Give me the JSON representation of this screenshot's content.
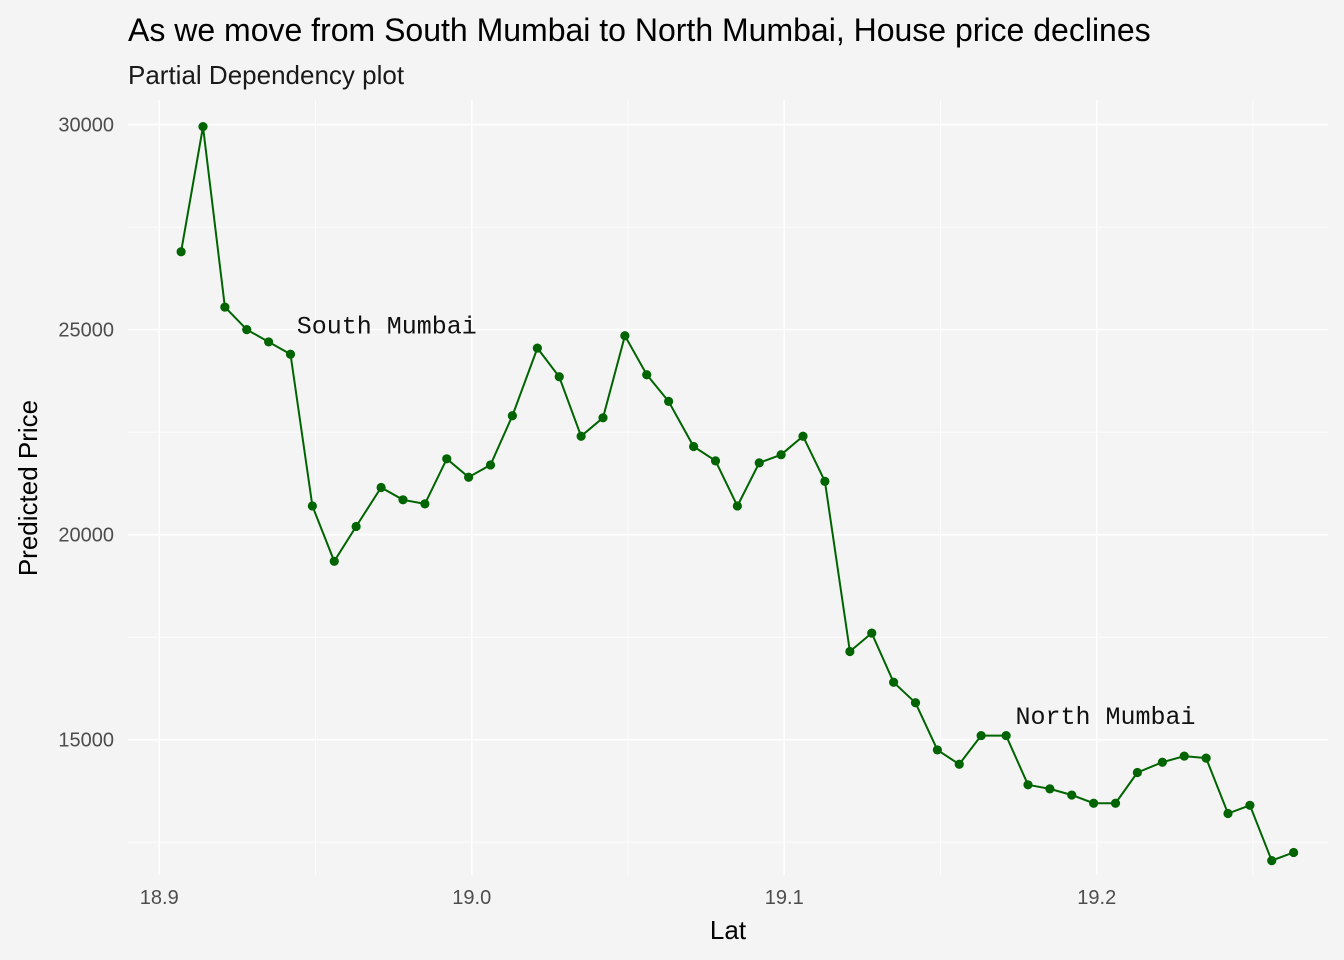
{
  "chart_data": {
    "type": "line",
    "title": "As we move from South Mumbai to North Mumbai, House price declines",
    "subtitle": "Partial Dependency plot",
    "xlabel": "Lat",
    "ylabel": "Predicted Price",
    "xlim": [
      18.89,
      19.274
    ],
    "ylim": [
      11700,
      30600
    ],
    "x_ticks": [
      18.9,
      19.0,
      19.1,
      19.2
    ],
    "x_tick_labels": [
      "18.9",
      "19.0",
      "19.1",
      "19.2"
    ],
    "y_ticks": [
      15000,
      20000,
      25000,
      30000
    ],
    "y_tick_labels": [
      "15000",
      "20000",
      "25000",
      "30000"
    ],
    "grid": true,
    "legend": "none",
    "colors": {
      "background": "#f4f4f4",
      "grid": "#ffffff",
      "series": "#006400",
      "annotation": "#111111"
    },
    "annotations": [
      {
        "text": "South Mumbai",
        "x": 18.944,
        "y": 24900
      },
      {
        "text": "North Mumbai",
        "x": 19.174,
        "y": 15380
      }
    ],
    "series": [
      {
        "x": [
          18.907,
          18.914,
          18.921,
          18.928,
          18.935,
          18.942,
          18.949,
          18.956,
          18.963,
          18.971,
          18.978,
          18.985,
          18.992,
          18.999,
          19.006,
          19.013,
          19.021,
          19.028,
          19.035,
          19.042,
          19.049,
          19.056,
          19.063,
          19.071,
          19.078,
          19.085,
          19.092,
          19.099,
          19.106,
          19.113,
          19.121,
          19.128,
          19.135,
          19.142,
          19.149,
          19.156,
          19.163,
          19.171,
          19.178,
          19.185,
          19.192,
          19.199,
          19.206,
          19.213,
          19.221,
          19.228,
          19.235,
          19.242,
          19.249,
          19.256,
          19.263
        ],
        "values": [
          26900,
          29950,
          25550,
          25000,
          24700,
          24400,
          20700,
          19350,
          20200,
          21150,
          20850,
          20750,
          21850,
          21400,
          21700,
          22900,
          24550,
          23850,
          22400,
          22850,
          24850,
          23900,
          23250,
          22150,
          21800,
          20700,
          21750,
          21950,
          22400,
          21300,
          17150,
          17600,
          16400,
          15900,
          14750,
          14400,
          15100,
          15100,
          13900,
          13800,
          13650,
          13450,
          13450,
          14200,
          14450,
          14600,
          14550,
          13200,
          13400,
          12050,
          12250
        ]
      }
    ]
  }
}
